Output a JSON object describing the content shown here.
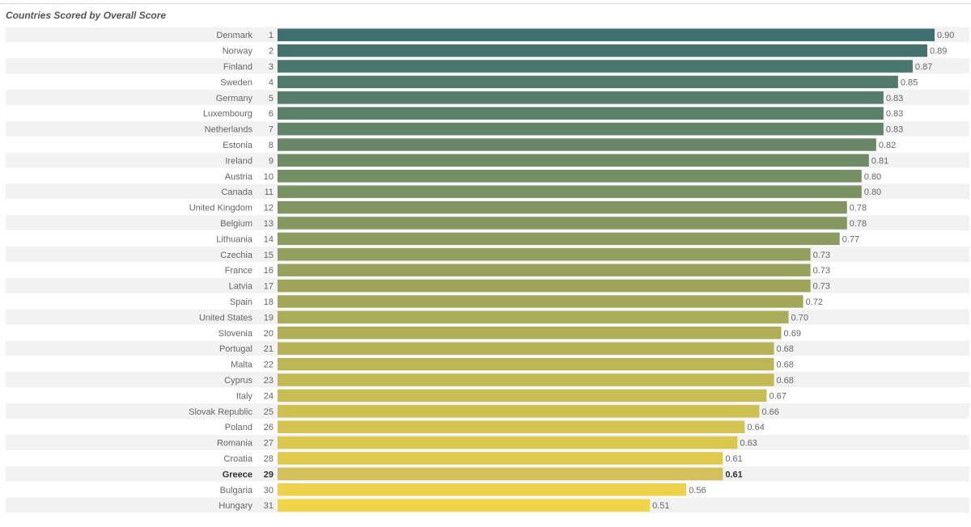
{
  "chart_data": {
    "type": "bar",
    "orientation": "horizontal",
    "title": "Countries Scored by Overall Score",
    "xlim": [
      0,
      0.9
    ],
    "highlight": "Greece",
    "colors": {
      "start": "#3e7070",
      "end": "#f2d449",
      "highlight": "#d3c05a",
      "row_band": "#f2f2f2"
    },
    "rows": [
      {
        "country": "Denmark",
        "rank": "1",
        "value": 0.9,
        "label": "0.90"
      },
      {
        "country": "Norway",
        "rank": "2",
        "value": 0.89,
        "label": "0.89"
      },
      {
        "country": "Finland",
        "rank": "3",
        "value": 0.87,
        "label": "0.87"
      },
      {
        "country": "Sweden",
        "rank": "4",
        "value": 0.85,
        "label": "0.85"
      },
      {
        "country": "Germany",
        "rank": "5",
        "value": 0.83,
        "label": "0.83"
      },
      {
        "country": "Luxembourg",
        "rank": "6",
        "value": 0.83,
        "label": "0.83"
      },
      {
        "country": "Netherlands",
        "rank": "7",
        "value": 0.83,
        "label": "0.83"
      },
      {
        "country": "Estonia",
        "rank": "8",
        "value": 0.82,
        "label": "0.82"
      },
      {
        "country": "Ireland",
        "rank": "9",
        "value": 0.81,
        "label": "0.81"
      },
      {
        "country": "Austria",
        "rank": "10",
        "value": 0.8,
        "label": "0.80"
      },
      {
        "country": "Canada",
        "rank": "11",
        "value": 0.8,
        "label": "0.80"
      },
      {
        "country": "United Kingdom",
        "rank": "12",
        "value": 0.78,
        "label": "0.78"
      },
      {
        "country": "Belgium",
        "rank": "13",
        "value": 0.78,
        "label": "0.78"
      },
      {
        "country": "Lithuania",
        "rank": "14",
        "value": 0.77,
        "label": "0.77"
      },
      {
        "country": "Czechia",
        "rank": "15",
        "value": 0.73,
        "label": "0.73"
      },
      {
        "country": "France",
        "rank": "16",
        "value": 0.73,
        "label": "0.73"
      },
      {
        "country": "Latvia",
        "rank": "17",
        "value": 0.73,
        "label": "0.73"
      },
      {
        "country": "Spain",
        "rank": "18",
        "value": 0.72,
        "label": "0.72"
      },
      {
        "country": "United States",
        "rank": "19",
        "value": 0.7,
        "label": "0.70"
      },
      {
        "country": "Slovenia",
        "rank": "20",
        "value": 0.69,
        "label": "0.69"
      },
      {
        "country": "Portugal",
        "rank": "21",
        "value": 0.68,
        "label": "0.68"
      },
      {
        "country": "Malta",
        "rank": "22",
        "value": 0.68,
        "label": "0.68"
      },
      {
        "country": "Cyprus",
        "rank": "23",
        "value": 0.68,
        "label": "0.68"
      },
      {
        "country": "Italy",
        "rank": "24",
        "value": 0.67,
        "label": "0.67"
      },
      {
        "country": "Slovak Republic",
        "rank": "25",
        "value": 0.66,
        "label": "0.66"
      },
      {
        "country": "Poland",
        "rank": "26",
        "value": 0.64,
        "label": "0.64"
      },
      {
        "country": "Romania",
        "rank": "27",
        "value": 0.63,
        "label": "0.63"
      },
      {
        "country": "Croatia",
        "rank": "28",
        "value": 0.61,
        "label": "0.61"
      },
      {
        "country": "Greece",
        "rank": "29",
        "value": 0.61,
        "label": "0.61"
      },
      {
        "country": "Bulgaria",
        "rank": "30",
        "value": 0.56,
        "label": "0.56"
      },
      {
        "country": "Hungary",
        "rank": "31",
        "value": 0.51,
        "label": "0.51"
      }
    ]
  }
}
